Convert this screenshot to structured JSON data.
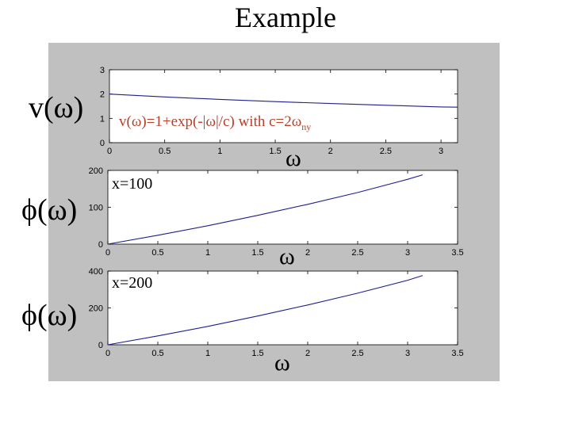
{
  "slide": {
    "title": "Example"
  },
  "labels": {
    "v_label": "v(ω)",
    "phi_label_1": "ϕ(ω)",
    "phi_label_2": "ϕ(ω)",
    "omega_1": "ω",
    "omega_2": "ω",
    "omega_3": "ω",
    "formula_main": "v(ω)=1+exp(-|ω|/c) with c=2ω",
    "formula_sub": "ny",
    "annot_x100": "x=100",
    "annot_x200": "x=200"
  },
  "colors": {
    "figure_background": "#c0c0c0",
    "axes_background": "#ffffff",
    "line": "#1f1f8f",
    "formula_text": "#b5412c"
  },
  "chart_data": [
    {
      "type": "line",
      "xlim": [
        0,
        3.15
      ],
      "ylim": [
        0,
        3
      ],
      "xticks": [
        "0",
        "0.5",
        "1",
        "1.5",
        "2",
        "2.5",
        "3"
      ],
      "yticks": [
        "0",
        "1",
        "2",
        "3"
      ],
      "xtick_values": [
        0,
        0.5,
        1,
        1.5,
        2,
        2.5,
        3
      ],
      "ytick_values": [
        0,
        1,
        2,
        3
      ],
      "series": [
        {
          "x": [
            0,
            0.5,
            1,
            1.5,
            2,
            2.5,
            3,
            3.15
          ],
          "values": [
            2.0,
            1.88,
            1.78,
            1.69,
            1.61,
            1.54,
            1.47,
            1.46
          ]
        }
      ]
    },
    {
      "type": "line",
      "xlim": [
        0,
        3.5
      ],
      "ylim": [
        0,
        200
      ],
      "xticks": [
        "0",
        "0.5",
        "1",
        "1.5",
        "2",
        "2.5",
        "3",
        "3.5"
      ],
      "yticks": [
        "0",
        "100",
        "200"
      ],
      "xtick_values": [
        0,
        0.5,
        1,
        1.5,
        2,
        2.5,
        3,
        3.5
      ],
      "ytick_values": [
        0,
        100,
        200
      ],
      "series": [
        {
          "x": [
            0,
            0.5,
            1,
            1.5,
            2,
            2.5,
            3,
            3.15
          ],
          "values": [
            0,
            24,
            50,
            78,
            108,
            140,
            176,
            188
          ]
        }
      ]
    },
    {
      "type": "line",
      "xlim": [
        0,
        3.5
      ],
      "ylim": [
        0,
        400
      ],
      "xticks": [
        "0",
        "0.5",
        "1",
        "1.5",
        "2",
        "2.5",
        "3",
        "3.5"
      ],
      "yticks": [
        "0",
        "200",
        "400"
      ],
      "xtick_values": [
        0,
        0.5,
        1,
        1.5,
        2,
        2.5,
        3,
        3.5
      ],
      "ytick_values": [
        0,
        200,
        400
      ],
      "series": [
        {
          "x": [
            0,
            0.5,
            1,
            1.5,
            2,
            2.5,
            3,
            3.15
          ],
          "values": [
            0,
            48,
            100,
            156,
            216,
            280,
            350,
            376
          ]
        }
      ]
    }
  ]
}
